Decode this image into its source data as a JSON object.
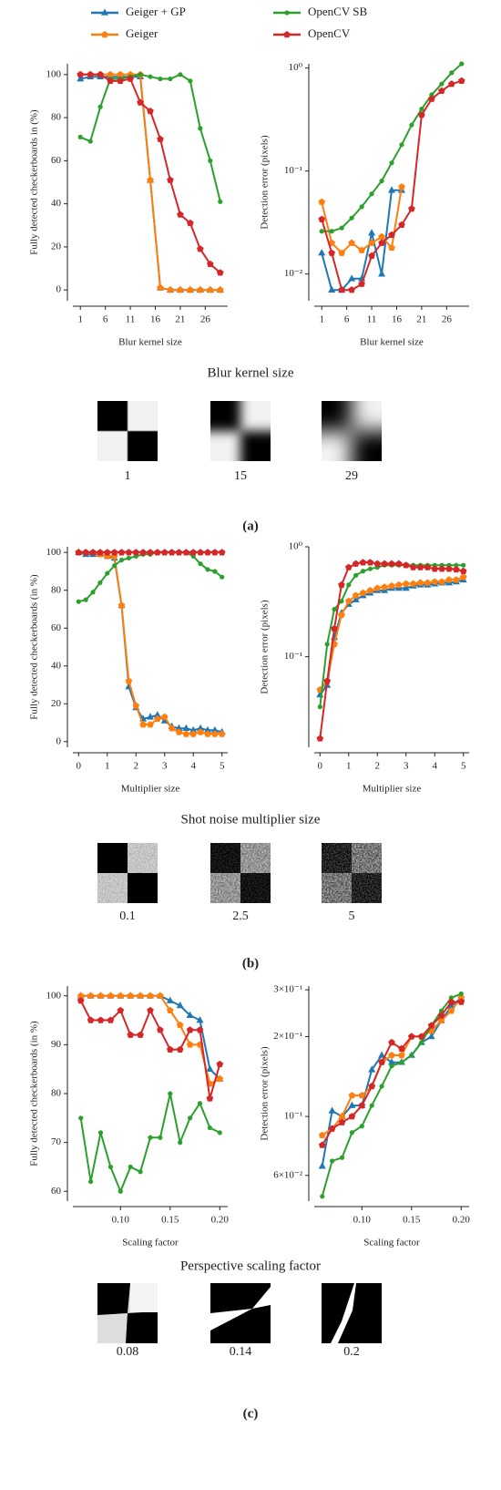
{
  "chart_data": [
    {
      "type": "line",
      "x": [
        1,
        3,
        5,
        7,
        9,
        11,
        13,
        15,
        17,
        19,
        21,
        23,
        25,
        27,
        29
      ],
      "xlim": [
        -0.5,
        30.5
      ],
      "xticks": [
        1,
        6,
        11,
        16,
        21,
        26
      ],
      "ylim": [
        -5,
        105
      ],
      "yticks": [
        0,
        20,
        40,
        60,
        80,
        100
      ],
      "log": false,
      "xlabel": "Blur kernel size",
      "ylabel": "Fully detected checkerboards in (%)",
      "series": [
        {
          "name": "Geiger + GP",
          "color": "#1f77b4",
          "marker": "triangle",
          "values": [
            98,
            99,
            99,
            99,
            99,
            99,
            99,
            51,
            1,
            0,
            0,
            0,
            0,
            0,
            0
          ]
        },
        {
          "name": "Geiger",
          "color": "#ff7f0e",
          "marker": "pentagon",
          "values": [
            100,
            100,
            100,
            100,
            100,
            100,
            100,
            51,
            1,
            0,
            0,
            0,
            0,
            0,
            0
          ]
        },
        {
          "name": "OpenCV SB",
          "color": "#2ca02c",
          "marker": "circle",
          "values": [
            71,
            69,
            85,
            98,
            98,
            99,
            100,
            99,
            98,
            98,
            100,
            97,
            75,
            60,
            41
          ]
        },
        {
          "name": "OpenCV",
          "color": "#d62728",
          "marker": "pentagon",
          "values": [
            100,
            100,
            100,
            97,
            97,
            98,
            87,
            83,
            70,
            51,
            35,
            31,
            19,
            12,
            8
          ]
        }
      ]
    },
    {
      "type": "line",
      "x": [
        1,
        3,
        5,
        7,
        9,
        11,
        13,
        15,
        17,
        19,
        21,
        23,
        25,
        27,
        29
      ],
      "xlim": [
        -0.5,
        30.5
      ],
      "xticks": [
        1,
        6,
        11,
        16,
        21,
        26
      ],
      "ylim": [
        0.0055,
        1.1
      ],
      "yticks": [
        {
          "value": 0.01,
          "label": "10⁻²"
        },
        {
          "value": 0.1,
          "label": "10⁻¹"
        },
        {
          "value": 1,
          "label": "10⁰"
        }
      ],
      "log": true,
      "xlabel": "Blur kernel size",
      "ylabel": "Detection error (pixels)",
      "series": [
        {
          "name": "Geiger + GP",
          "color": "#1f77b4",
          "marker": "triangle",
          "values": [
            0.016,
            0.007,
            0.007,
            0.009,
            0.009,
            0.025,
            0.01,
            0.065,
            0.065,
            null,
            null,
            null,
            null,
            null,
            null
          ]
        },
        {
          "name": "Geiger",
          "color": "#ff7f0e",
          "marker": "pentagon",
          "values": [
            0.05,
            0.02,
            0.016,
            0.02,
            0.017,
            0.02,
            0.023,
            0.018,
            0.07,
            null,
            null,
            null,
            null,
            null,
            null
          ]
        },
        {
          "name": "OpenCV SB",
          "color": "#2ca02c",
          "marker": "circle",
          "values": [
            0.026,
            0.026,
            0.028,
            0.035,
            0.045,
            0.06,
            0.08,
            0.12,
            0.18,
            0.28,
            0.4,
            0.55,
            0.7,
            0.9,
            1.1
          ]
        },
        {
          "name": "OpenCV",
          "color": "#d62728",
          "marker": "pentagon",
          "values": [
            0.034,
            0.016,
            0.007,
            0.007,
            0.008,
            0.015,
            0.02,
            0.024,
            0.03,
            0.043,
            0.35,
            0.5,
            0.6,
            0.7,
            0.75
          ]
        }
      ]
    },
    {
      "type": "line",
      "x": [
        0,
        0.25,
        0.5,
        0.75,
        1,
        1.25,
        1.5,
        1.75,
        2,
        2.25,
        2.5,
        2.75,
        3,
        3.25,
        3.5,
        3.75,
        4,
        4.25,
        4.5,
        4.75,
        5
      ],
      "xlim": [
        -0.2,
        5.2
      ],
      "xticks": [
        0,
        1,
        2,
        3,
        4,
        5
      ],
      "ylim": [
        -3,
        103
      ],
      "yticks": [
        0,
        20,
        40,
        60,
        80,
        100
      ],
      "log": false,
      "xlabel": "Multiplier size",
      "ylabel": "Fully detected checkerboards (in %)",
      "series": [
        {
          "name": "Geiger + GP",
          "color": "#1f77b4",
          "marker": "triangle",
          "values": [
            100,
            99,
            99,
            99,
            98,
            97,
            72,
            29,
            18,
            12,
            13,
            14,
            11,
            8,
            7,
            7,
            6,
            7,
            6,
            6,
            5
          ]
        },
        {
          "name": "Geiger",
          "color": "#ff7f0e",
          "marker": "pentagon",
          "values": [
            100,
            100,
            100,
            99,
            98,
            98,
            72,
            32,
            19,
            9,
            9,
            12,
            13,
            7,
            5,
            4,
            4,
            5,
            4,
            4,
            4
          ]
        },
        {
          "name": "OpenCV SB",
          "color": "#2ca02c",
          "marker": "circle",
          "values": [
            74,
            75,
            79,
            84,
            89,
            93,
            96,
            97,
            98,
            99,
            99,
            100,
            100,
            100,
            100,
            100,
            98,
            94,
            91,
            90,
            87
          ]
        },
        {
          "name": "OpenCV",
          "color": "#d62728",
          "marker": "pentagon",
          "values": [
            100,
            100,
            100,
            100,
            100,
            100,
            100,
            100,
            100,
            100,
            100,
            100,
            100,
            100,
            100,
            100,
            100,
            100,
            100,
            100,
            100
          ]
        }
      ]
    },
    {
      "type": "line",
      "x": [
        0,
        0.25,
        0.5,
        0.75,
        1,
        1.25,
        1.5,
        1.75,
        2,
        2.25,
        2.5,
        2.75,
        3,
        3.25,
        3.5,
        3.75,
        4,
        4.25,
        4.5,
        4.75,
        5
      ],
      "xlim": [
        -0.2,
        5.2
      ],
      "xticks": [
        0,
        1,
        2,
        3,
        4,
        5
      ],
      "ylim": [
        0.015,
        1.0
      ],
      "yticks": [
        {
          "value": 0.1,
          "label": "10⁻¹"
        },
        {
          "value": 1,
          "label": "10⁰"
        }
      ],
      "log": true,
      "xlabel": "Multiplier size",
      "ylabel": "Detection error (pixels)",
      "series": [
        {
          "name": "Geiger + GP",
          "color": "#1f77b4",
          "marker": "triangle",
          "values": [
            0.045,
            0.055,
            0.15,
            0.25,
            0.3,
            0.33,
            0.36,
            0.38,
            0.4,
            0.4,
            0.42,
            0.42,
            0.42,
            0.44,
            0.45,
            0.45,
            0.46,
            0.47,
            0.47,
            0.48,
            0.5
          ]
        },
        {
          "name": "Geiger",
          "color": "#ff7f0e",
          "marker": "pentagon",
          "values": [
            0.05,
            0.06,
            0.13,
            0.24,
            0.32,
            0.36,
            0.38,
            0.4,
            0.42,
            0.43,
            0.44,
            0.45,
            0.46,
            0.46,
            0.47,
            0.47,
            0.48,
            0.48,
            0.5,
            0.5,
            0.53
          ]
        },
        {
          "name": "OpenCV SB",
          "color": "#2ca02c",
          "marker": "circle",
          "values": [
            0.035,
            0.13,
            0.27,
            0.32,
            0.45,
            0.55,
            0.6,
            0.63,
            0.65,
            0.68,
            0.68,
            0.68,
            0.68,
            0.68,
            0.68,
            0.68,
            0.68,
            0.68,
            0.68,
            0.68,
            0.68
          ]
        },
        {
          "name": "OpenCV",
          "color": "#d62728",
          "marker": "pentagon",
          "values": [
            0.018,
            0.06,
            0.18,
            0.45,
            0.65,
            0.7,
            0.72,
            0.72,
            0.7,
            0.7,
            0.7,
            0.7,
            0.68,
            0.65,
            0.65,
            0.65,
            0.63,
            0.63,
            0.63,
            0.62,
            0.6
          ]
        }
      ]
    },
    {
      "type": "line",
      "x": [
        0.06,
        0.07,
        0.08,
        0.09,
        0.1,
        0.11,
        0.12,
        0.13,
        0.14,
        0.15,
        0.16,
        0.17,
        0.18,
        0.19,
        0.2
      ],
      "xlim": [
        0.052,
        0.208
      ],
      "xticks": [
        {
          "value": 0.1,
          "label": "0.10"
        },
        {
          "value": 0.15,
          "label": "0.15"
        },
        {
          "value": 0.2,
          "label": "0.20"
        }
      ],
      "ylim": [
        58,
        102
      ],
      "yticks": [
        60,
        70,
        80,
        90,
        100
      ],
      "log": false,
      "xlabel": "Scaling factor",
      "ylabel": "Fully detected checkerboards (in %)",
      "series": [
        {
          "name": "Geiger + GP",
          "color": "#1f77b4",
          "marker": "triangle",
          "values": [
            100,
            100,
            100,
            100,
            100,
            100,
            100,
            100,
            100,
            99,
            98,
            96,
            95,
            85,
            83
          ]
        },
        {
          "name": "Geiger",
          "color": "#ff7f0e",
          "marker": "pentagon",
          "values": [
            100,
            100,
            100,
            100,
            100,
            100,
            100,
            100,
            100,
            97,
            94,
            90,
            90,
            82,
            83
          ]
        },
        {
          "name": "OpenCV SB",
          "color": "#2ca02c",
          "marker": "circle",
          "values": [
            75,
            62,
            72,
            65,
            60,
            65,
            64,
            71,
            71,
            80,
            70,
            75,
            78,
            73,
            72
          ]
        },
        {
          "name": "OpenCV",
          "color": "#d62728",
          "marker": "pentagon",
          "values": [
            99,
            95,
            95,
            95,
            97,
            92,
            92,
            97,
            93,
            89,
            89,
            93,
            93,
            79,
            86
          ]
        }
      ]
    },
    {
      "type": "line",
      "x": [
        0.06,
        0.07,
        0.08,
        0.09,
        0.1,
        0.11,
        0.12,
        0.13,
        0.14,
        0.15,
        0.16,
        0.17,
        0.18,
        0.19,
        0.2
      ],
      "xlim": [
        0.052,
        0.208
      ],
      "xticks": [
        {
          "value": 0.1,
          "label": "0.10"
        },
        {
          "value": 0.15,
          "label": "0.15"
        },
        {
          "value": 0.2,
          "label": "0.20"
        }
      ],
      "ylim": [
        0.048,
        0.31
      ],
      "yticks": [
        {
          "value": 0.06,
          "label": "6×10⁻²"
        },
        {
          "value": 0.1,
          "label": "10⁻¹"
        },
        {
          "value": 0.2,
          "label": "2×10⁻¹"
        },
        {
          "value": 0.3,
          "label": "3×10⁻¹"
        }
      ],
      "log": true,
      "xlabel": "Scaling factor",
      "ylabel": "Detection error (pixels)",
      "series": [
        {
          "name": "Geiger + GP",
          "color": "#1f77b4",
          "marker": "triangle",
          "values": [
            0.065,
            0.105,
            0.1,
            0.11,
            0.11,
            0.15,
            0.17,
            0.16,
            0.16,
            0.17,
            0.19,
            0.2,
            0.23,
            0.26,
            0.28
          ]
        },
        {
          "name": "Geiger",
          "color": "#ff7f0e",
          "marker": "pentagon",
          "values": [
            0.085,
            0.09,
            0.1,
            0.12,
            0.12,
            0.13,
            0.16,
            0.17,
            0.17,
            0.2,
            0.2,
            0.21,
            0.23,
            0.25,
            0.28
          ]
        },
        {
          "name": "OpenCV SB",
          "color": "#2ca02c",
          "marker": "circle",
          "values": [
            0.05,
            0.068,
            0.07,
            0.087,
            0.092,
            0.11,
            0.13,
            0.155,
            0.16,
            0.17,
            0.19,
            0.22,
            0.25,
            0.28,
            0.29
          ]
        },
        {
          "name": "OpenCV",
          "color": "#d62728",
          "marker": "pentagon",
          "values": [
            0.078,
            0.09,
            0.095,
            0.1,
            0.11,
            0.13,
            0.16,
            0.19,
            0.18,
            0.2,
            0.2,
            0.22,
            0.24,
            0.27,
            0.27
          ]
        }
      ]
    }
  ],
  "panels": [
    {
      "title": "Blur kernel size",
      "image_labels": [
        "1",
        "15",
        "29"
      ],
      "label": "(a)"
    },
    {
      "title": "Shot noise multiplier size",
      "image_labels": [
        "0.1",
        "2.5",
        "5"
      ],
      "label": "(b)"
    },
    {
      "title": "Perspective scaling factor",
      "image_labels": [
        "0.08",
        "0.14",
        "0.2"
      ],
      "label": "(c)"
    }
  ]
}
